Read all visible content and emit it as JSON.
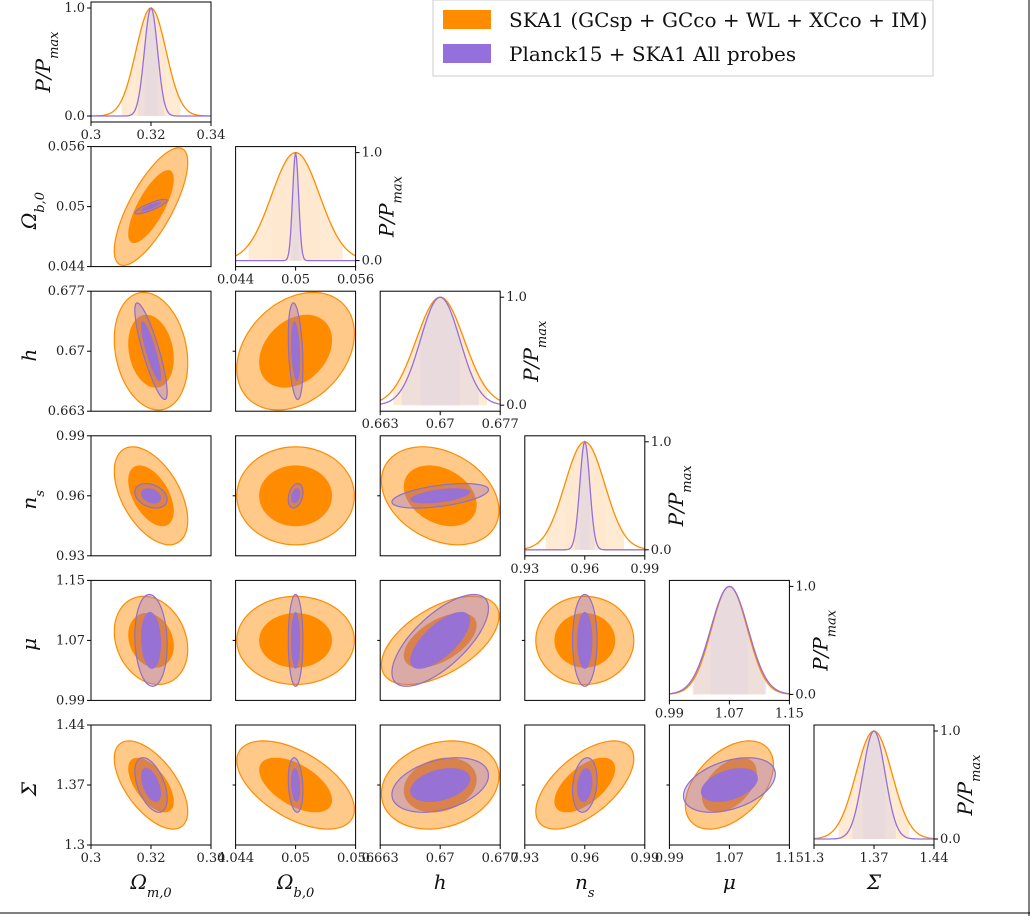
{
  "chart_data": {
    "type": "corner",
    "title": "",
    "params": [
      {
        "name": "Omega_m0",
        "label": "Ω",
        "sub": "m,0",
        "center": 0.32,
        "range": [
          0.3,
          0.34
        ],
        "ticks": [
          "0.3",
          "0.32",
          "0.34"
        ],
        "tickvals": [
          0.3,
          0.32,
          0.34
        ]
      },
      {
        "name": "Omega_b0",
        "label": "Ω",
        "sub": "b,0",
        "center": 0.05,
        "range": [
          0.044,
          0.056
        ],
        "ticks": [
          "0.044",
          "0.05",
          "0.056"
        ],
        "tickvals": [
          0.044,
          0.05,
          0.056
        ]
      },
      {
        "name": "h",
        "label": "h",
        "sub": "",
        "center": 0.67,
        "range": [
          0.663,
          0.677
        ],
        "ticks": [
          "0.663",
          "0.67",
          "0.677"
        ],
        "tickvals": [
          0.663,
          0.67,
          0.677
        ]
      },
      {
        "name": "n_s",
        "label": "n",
        "sub": "s",
        "center": 0.96,
        "range": [
          0.93,
          0.99
        ],
        "ticks": [
          "0.93",
          "0.96",
          "0.99"
        ],
        "tickvals": [
          0.93,
          0.96,
          0.99
        ]
      },
      {
        "name": "mu",
        "label": "μ",
        "sub": "",
        "center": 1.07,
        "range": [
          0.99,
          1.15
        ],
        "ticks": [
          "0.99",
          "1.07",
          "1.15"
        ],
        "tickvals": [
          0.99,
          1.07,
          1.15
        ]
      },
      {
        "name": "Sigma",
        "label": "Σ",
        "sub": "",
        "center": 1.37,
        "range": [
          1.3,
          1.44
        ],
        "ticks": [
          "1.3",
          "1.37",
          "1.44"
        ],
        "tickvals": [
          1.3,
          1.37,
          1.44
        ]
      }
    ],
    "pdf_axis": {
      "label": "P/P",
      "sub": "max",
      "ticks": [
        "0.0",
        "1.0"
      ],
      "tickvals": [
        0.0,
        1.0
      ]
    },
    "series": [
      {
        "name": "SKA1",
        "legend": "SKA1 (GCsp + GCco + WL + XCco + IM)",
        "sigma": [
          0.005,
          0.0024,
          0.0028,
          0.01,
          0.024,
          0.021
        ],
        "corr": [
          [
            1,
            0.75,
            -0.2,
            -0.5,
            -0.2,
            -0.6
          ],
          [
            0.75,
            1,
            0.3,
            0.0,
            0.0,
            -0.55
          ],
          [
            -0.2,
            0.3,
            1,
            -0.3,
            0.55,
            0.2
          ],
          [
            -0.5,
            0.0,
            -0.3,
            1,
            0.0,
            0.6
          ],
          [
            -0.2,
            0.0,
            0.55,
            0.0,
            1,
            0.45
          ],
          [
            -0.6,
            -0.55,
            0.2,
            0.6,
            0.45,
            1
          ]
        ],
        "fill1": "#ff8c00",
        "fill2": "#ffc98a",
        "edge": "#ff8c00",
        "band": "#ffe8cf"
      },
      {
        "name": "Planck15 + SKA1",
        "legend": "Planck15  +  SKA1 All probes",
        "sigma": [
          0.0022,
          0.0003,
          0.0023,
          0.0025,
          0.025,
          0.013
        ],
        "corr": [
          [
            1,
            0.85,
            -0.85,
            -0.3,
            -0.1,
            -0.5
          ],
          [
            0.85,
            1,
            -0.3,
            0.3,
            0.0,
            -0.2
          ],
          [
            -0.85,
            -0.3,
            1,
            0.5,
            0.7,
            0.35
          ],
          [
            -0.3,
            0.3,
            0.5,
            1,
            0.0,
            0.2
          ],
          [
            -0.1,
            0.0,
            0.7,
            0.0,
            1,
            0.4
          ],
          [
            -0.5,
            -0.2,
            0.35,
            0.2,
            0.4,
            1
          ]
        ],
        "fill1": "#9370db",
        "fill2": "#c9a5c8",
        "edge": "#8e6fc9",
        "band": "#e4d7e0"
      }
    ],
    "levels": [
      "68%",
      "95%"
    ]
  },
  "colors": {
    "ska_dark": "#ff8c00",
    "ska_light": "#ffc98a",
    "planck": "#9370db"
  }
}
